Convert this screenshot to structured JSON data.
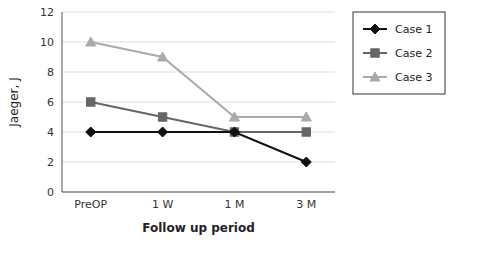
{
  "chart_data": {
    "type": "line",
    "xlabel": "Follow up period",
    "ylabel": "Jaeger, J",
    "categories": [
      "PreOP",
      "1 W",
      "1 M",
      "3 M"
    ],
    "series": [
      {
        "name": "Case 1",
        "color": "#111111",
        "marker": "diamond",
        "values": [
          4,
          4,
          4,
          2
        ]
      },
      {
        "name": "Case 2",
        "color": "#666666",
        "marker": "square",
        "values": [
          6,
          5,
          4,
          4
        ]
      },
      {
        "name": "Case 3",
        "color": "#aaaaaa",
        "marker": "triangle",
        "values": [
          10,
          9,
          5,
          5
        ]
      }
    ],
    "ylim": [
      0,
      12
    ],
    "yticks": [
      0,
      2,
      4,
      6,
      8,
      10,
      12
    ],
    "grid": true,
    "legend": "right"
  }
}
